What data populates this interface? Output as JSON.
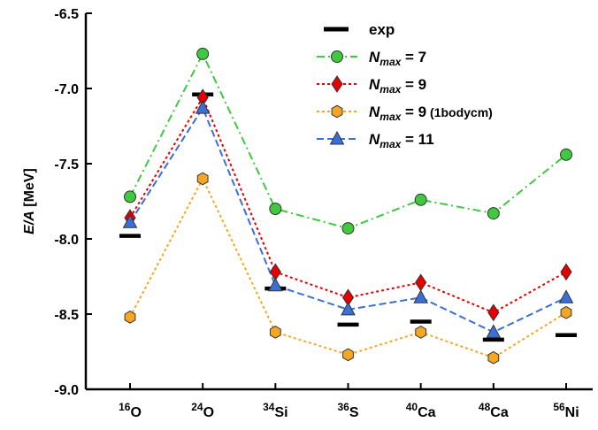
{
  "chart_data": {
    "type": "line",
    "xlabel": "",
    "ylabel": "E/A [MeV]",
    "ylabel_parts": {
      "var": "E/A",
      "unit": " [MeV]"
    },
    "ylim": [
      -9.0,
      -6.5
    ],
    "yticks": [
      -9.0,
      -8.5,
      -8.0,
      -7.5,
      -7.0,
      -6.5
    ],
    "ytick_labels": [
      "-9.0",
      "-8.5",
      "-8.0",
      "-7.5",
      "-7.0",
      "-6.5"
    ],
    "categories": [
      {
        "mass": "16",
        "elem": "O"
      },
      {
        "mass": "24",
        "elem": "O"
      },
      {
        "mass": "34",
        "elem": "Si"
      },
      {
        "mass": "36",
        "elem": "S"
      },
      {
        "mass": "40",
        "elem": "Ca"
      },
      {
        "mass": "48",
        "elem": "Ca"
      },
      {
        "mass": "56",
        "elem": "Ni"
      }
    ],
    "legend_position": "top-right",
    "series": [
      {
        "name": "exp",
        "marker": "bar",
        "color": "#000000",
        "values": [
          -7.98,
          -7.04,
          -8.33,
          -8.57,
          -8.55,
          -8.67,
          -8.64
        ]
      },
      {
        "name": "N_max = 7",
        "legend": {
          "pre": "N",
          "sub": "max",
          "post": " = 7"
        },
        "marker": "circle",
        "color": "#3ec93e",
        "dash": "9 4 2 4",
        "values": [
          -7.72,
          -6.77,
          -7.8,
          -7.93,
          -7.74,
          -7.83,
          -7.44
        ]
      },
      {
        "name": "N_max = 9",
        "legend": {
          "pre": "N",
          "sub": "max",
          "post": " = 9"
        },
        "marker": "diamond",
        "color": "#e60000",
        "dash": "3 3",
        "values": [
          -7.86,
          -7.06,
          -8.22,
          -8.39,
          -8.29,
          -8.49,
          -8.22
        ]
      },
      {
        "name": "N_max = 9 (1bodycm)",
        "legend": {
          "pre": "N",
          "sub": "max",
          "post": " = 9 (1bodycm)"
        },
        "marker": "hexagon",
        "color": "#f5a623",
        "dash": "3 3",
        "values": [
          -8.52,
          -7.6,
          -8.62,
          -8.77,
          -8.62,
          -8.79,
          -8.49
        ]
      },
      {
        "name": "N_max = 11",
        "legend": {
          "pre": "N",
          "sub": "max",
          "post": " = 11"
        },
        "marker": "triangle",
        "color": "#3a6fd8",
        "dash": "8 4",
        "values": [
          -7.89,
          -7.13,
          -8.31,
          -8.47,
          -8.39,
          -8.62,
          -8.39
        ]
      }
    ]
  }
}
